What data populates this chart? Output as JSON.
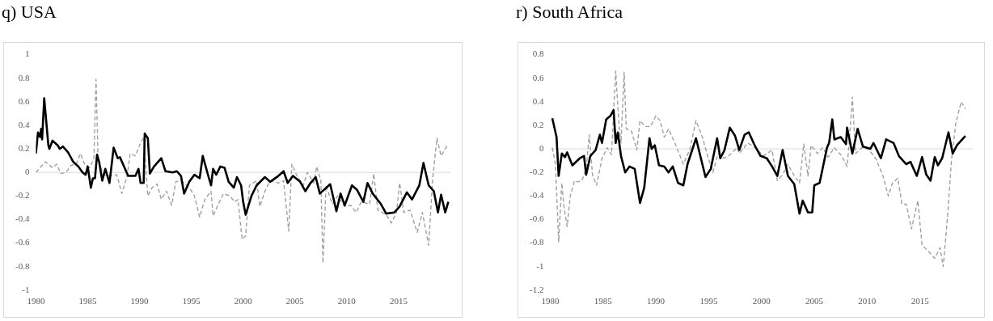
{
  "chart_data": [
    {
      "type": "line",
      "title": "q) USA",
      "xlim": [
        1980,
        2020
      ],
      "xticks": [
        1980,
        1985,
        1990,
        1995,
        2000,
        2005,
        2010,
        2015
      ],
      "ylim": [
        -1,
        1
      ],
      "yticks": [
        -1,
        -0.8,
        -0.6,
        -0.4,
        -0.2,
        0,
        0.2,
        0.4,
        0.6,
        0.8,
        1
      ],
      "grid": false,
      "legend": false,
      "marker": "none",
      "ref_lines": [
        {
          "axis": "y",
          "value": 0,
          "color": "#d9d9d9"
        }
      ],
      "series": [
        {
          "color": "#000000",
          "line_style": "solid",
          "x": [
            1980,
            1980.2,
            1980.4,
            1980.5,
            1980.6,
            1980.8,
            1981.2,
            1981.3,
            1981.6,
            1982.1,
            1982.3,
            1982.6,
            1983.1,
            1983.6,
            1984.1,
            1984.5,
            1984.8,
            1985.0,
            1985.3,
            1985.5,
            1985.7,
            1985.9,
            1986.1,
            1986.4,
            1986.7,
            1987.1,
            1987.5,
            1987.9,
            1988.1,
            1988.9,
            1989.6,
            1989.9,
            1990.1,
            1990.4,
            1990.5,
            1990.8,
            1991.0,
            1991.4,
            1992.1,
            1992.5,
            1993.2,
            1993.6,
            1994.0,
            1994.3,
            1994.8,
            1995.3,
            1995.8,
            1996.1,
            1996.7,
            1996.9,
            1997.1,
            1997.4,
            1997.8,
            1998.2,
            1998.6,
            1999.1,
            1999.4,
            1999.8,
            2000.0,
            2000.24,
            2000.8,
            2001.3,
            2002.1,
            2002.6,
            2003.4,
            2003.9,
            2004.3,
            2004.8,
            2005.5,
            2006.0,
            2006.5,
            2007.0,
            2007.4,
            2008.4,
            2009.0,
            2009.4,
            2009.8,
            2010.5,
            2011.0,
            2011.6,
            2012.0,
            2012.5,
            2013.3,
            2013.8,
            2014.6,
            2015.1,
            2015.8,
            2016.3,
            2017.0,
            2017.4,
            2017.9,
            2018.4,
            2018.8,
            2019.1,
            2019.5,
            2019.8
          ],
          "values": [
            0.16,
            0.34,
            0.3,
            0.37,
            0.28,
            0.63,
            0.23,
            0.2,
            0.27,
            0.23,
            0.2,
            0.22,
            0.17,
            0.09,
            0.05,
            0.0,
            -0.02,
            0.05,
            -0.13,
            -0.05,
            -0.05,
            0.15,
            0.09,
            -0.07,
            0.03,
            -0.09,
            0.21,
            0.12,
            0.13,
            -0.03,
            -0.03,
            0.03,
            -0.09,
            -0.09,
            0.33,
            0.29,
            -0.01,
            0.05,
            0.12,
            0.01,
            0.0,
            0.01,
            -0.03,
            -0.18,
            -0.08,
            -0.02,
            -0.05,
            0.14,
            -0.05,
            -0.11,
            0.03,
            -0.02,
            0.05,
            0.04,
            -0.08,
            -0.13,
            -0.04,
            -0.11,
            -0.25,
            -0.36,
            -0.2,
            -0.11,
            -0.04,
            -0.08,
            -0.03,
            0.01,
            -0.09,
            -0.03,
            -0.08,
            -0.16,
            -0.09,
            -0.04,
            -0.18,
            -0.1,
            -0.33,
            -0.18,
            -0.28,
            -0.11,
            -0.15,
            -0.25,
            -0.09,
            -0.18,
            -0.27,
            -0.35,
            -0.34,
            -0.29,
            -0.17,
            -0.23,
            -0.11,
            0.08,
            -0.11,
            -0.16,
            -0.34,
            -0.19,
            -0.34,
            -0.25
          ]
        },
        {
          "color": "#a0a0a0",
          "line_style": "dashed",
          "x": [
            1980,
            1980.5,
            1980.9,
            1981.6,
            1982.0,
            1982.4,
            1982.9,
            1983.4,
            1983.9,
            1984.3,
            1984.7,
            1985.2,
            1985.6,
            1985.8,
            1986.0,
            1986.5,
            1987.0,
            1987.8,
            1988.3,
            1988.8,
            1989.1,
            1989.6,
            1990.1,
            1990.4,
            1990.8,
            1991.2,
            1991.7,
            1992.1,
            1992.6,
            1993.1,
            1993.5,
            1994.0,
            1994.8,
            1995.3,
            1995.8,
            1996.3,
            1996.9,
            1997.1,
            1997.6,
            1998.1,
            1998.7,
            1999.2,
            1999.5,
            1999.9,
            2000.24,
            2000.6,
            2001.3,
            2001.6,
            2002.1,
            2002.6,
            2003.4,
            2003.9,
            2004.4,
            2004.7,
            2005.2,
            2005.8,
            2006.2,
            2006.8,
            2007.1,
            2007.5,
            2007.7,
            2008.0,
            2008.6,
            2009.1,
            2009.8,
            2010.4,
            2010.9,
            2011.4,
            2012.2,
            2012.6,
            2013.0,
            2013.8,
            2014.3,
            2014.8,
            2015.1,
            2015.5,
            2016.1,
            2016.8,
            2017.3,
            2017.9,
            2018.3,
            2018.7,
            2019.1,
            2019.7
          ],
          "values": [
            0.0,
            0.05,
            0.09,
            0.04,
            0.07,
            -0.01,
            0.0,
            0.06,
            0.07,
            0.16,
            0.07,
            0.04,
            0.12,
            0.79,
            0.12,
            -0.02,
            -0.03,
            -0.02,
            -0.18,
            -0.03,
            0.16,
            0.14,
            0.25,
            0.3,
            -0.2,
            -0.13,
            -0.1,
            -0.23,
            -0.16,
            -0.28,
            -0.08,
            -0.07,
            -0.13,
            -0.2,
            -0.38,
            -0.23,
            -0.16,
            -0.37,
            -0.27,
            -0.18,
            -0.2,
            -0.25,
            -0.23,
            -0.57,
            -0.54,
            -0.11,
            -0.07,
            -0.29,
            -0.16,
            -0.07,
            -0.09,
            -0.07,
            -0.5,
            0.07,
            -0.03,
            -0.11,
            0.0,
            -0.09,
            0.05,
            -0.07,
            -0.77,
            -0.11,
            -0.27,
            -0.2,
            -0.29,
            -0.28,
            -0.34,
            -0.25,
            -0.27,
            -0.01,
            -0.32,
            -0.36,
            -0.43,
            -0.34,
            -0.09,
            -0.34,
            -0.32,
            -0.51,
            -0.34,
            -0.62,
            -0.04,
            0.29,
            0.14,
            0.23
          ]
        }
      ]
    },
    {
      "type": "line",
      "title": "r) South Africa",
      "xlim": [
        1980,
        2020
      ],
      "xticks": [
        1980,
        1985,
        1990,
        1995,
        2000,
        2005,
        2010,
        2015
      ],
      "ylim": [
        -1.2,
        0.8
      ],
      "yticks": [
        -1.2,
        -1,
        -0.8,
        -0.6,
        -0.4,
        -0.2,
        0,
        0.2,
        0.4,
        0.6,
        0.8
      ],
      "grid": false,
      "legend": false,
      "marker": "none",
      "ref_lines": [
        {
          "axis": "y",
          "value": 0,
          "color": "#d9d9d9"
        }
      ],
      "series": [
        {
          "color": "#000000",
          "line_style": "solid",
          "x": [
            1980.2,
            1980.6,
            1980.8,
            1981.1,
            1981.4,
            1981.6,
            1982.1,
            1982.8,
            1983.2,
            1983.4,
            1983.8,
            1984.3,
            1984.7,
            1984.9,
            1985.3,
            1985.7,
            1986.0,
            1986.2,
            1986.4,
            1986.7,
            1987.1,
            1987.5,
            1988.0,
            1988.5,
            1988.9,
            1989.4,
            1989.6,
            1989.9,
            1990.3,
            1990.8,
            1991.2,
            1991.6,
            1992.1,
            1992.6,
            1993.0,
            1993.8,
            1994.4,
            1994.7,
            1995.2,
            1995.8,
            1996.1,
            1996.5,
            1997.0,
            1997.5,
            1997.9,
            1998.4,
            1998.8,
            1999.3,
            1999.9,
            2000.5,
            2001.0,
            2001.5,
            2002.0,
            2002.5,
            2003.1,
            2003.6,
            2003.9,
            2004.4,
            2004.8,
            2005.0,
            2005.5,
            2006.2,
            2006.4,
            2006.7,
            2006.9,
            2007.5,
            2008.0,
            2008.1,
            2008.6,
            2009.1,
            2009.6,
            2010.3,
            2010.6,
            2011.3,
            2011.8,
            2012.5,
            2013.0,
            2013.7,
            2014.1,
            2014.7,
            2015.2,
            2015.6,
            2016.0,
            2016.4,
            2016.7,
            2017.1,
            2017.7,
            2018.1,
            2018.5,
            2018.9,
            2019.3
          ],
          "values": [
            0.26,
            0.1,
            -0.23,
            -0.04,
            -0.07,
            -0.03,
            -0.14,
            -0.08,
            -0.06,
            -0.22,
            -0.06,
            -0.01,
            0.12,
            0.05,
            0.25,
            0.28,
            0.33,
            0.05,
            0.14,
            -0.06,
            -0.2,
            -0.15,
            -0.17,
            -0.46,
            -0.33,
            0.09,
            0.0,
            0.03,
            -0.14,
            -0.15,
            -0.2,
            -0.15,
            -0.29,
            -0.31,
            -0.13,
            0.09,
            -0.13,
            -0.24,
            -0.17,
            0.09,
            -0.08,
            -0.01,
            0.18,
            0.11,
            -0.01,
            0.12,
            0.14,
            0.04,
            -0.06,
            -0.08,
            -0.15,
            -0.23,
            -0.01,
            -0.23,
            -0.3,
            -0.55,
            -0.44,
            -0.54,
            -0.54,
            -0.31,
            -0.29,
            0.01,
            0.05,
            0.25,
            0.08,
            0.1,
            0.04,
            0.18,
            -0.04,
            0.17,
            0.02,
            0.0,
            0.05,
            -0.08,
            0.08,
            0.05,
            -0.06,
            -0.13,
            -0.11,
            -0.23,
            -0.07,
            -0.22,
            -0.27,
            -0.07,
            -0.14,
            -0.08,
            0.14,
            -0.04,
            0.03,
            0.07,
            0.11
          ]
        },
        {
          "color": "#a0a0a0",
          "line_style": "dashed",
          "x": [
            1980.2,
            1980.5,
            1980.8,
            1981.1,
            1981.3,
            1981.6,
            1981.9,
            1982.3,
            1982.6,
            1983.0,
            1983.4,
            1983.7,
            1984.0,
            1984.4,
            1984.9,
            1985.4,
            1985.8,
            1986.2,
            1986.5,
            1986.7,
            1987.0,
            1987.2,
            1987.7,
            1988.2,
            1988.5,
            1989.0,
            1989.5,
            1990.0,
            1990.4,
            1990.8,
            1991.2,
            1991.8,
            1992.6,
            1993.2,
            1993.8,
            1994.4,
            1994.9,
            1995.4,
            1995.9,
            1996.4,
            1996.9,
            1997.7,
            1997.9,
            1998.7,
            1999.4,
            2000.2,
            2001.0,
            2001.5,
            2002.0,
            2002.5,
            2003.1,
            2003.6,
            2004.0,
            2004.4,
            2004.7,
            2005.3,
            2005.8,
            2006.3,
            2006.9,
            2007.6,
            2008.1,
            2008.3,
            2008.6,
            2008.9,
            2009.5,
            2010.1,
            2010.8,
            2011.5,
            2012.0,
            2012.4,
            2012.9,
            2013.3,
            2013.7,
            2014.2,
            2014.8,
            2015.2,
            2015.7,
            2016.4,
            2016.9,
            2017.2,
            2017.6,
            2018.0,
            2018.4,
            2018.9,
            2019.3
          ],
          "values": [
            0.01,
            -0.13,
            -0.79,
            -0.29,
            -0.49,
            -0.66,
            -0.4,
            -0.27,
            -0.28,
            -0.27,
            -0.17,
            0.12,
            -0.22,
            -0.31,
            -0.08,
            0.01,
            -0.05,
            0.66,
            0.22,
            0.05,
            0.65,
            0.17,
            0.15,
            -0.01,
            0.24,
            0.19,
            0.19,
            0.28,
            0.24,
            0.1,
            0.17,
            0.05,
            -0.13,
            -0.01,
            0.24,
            0.1,
            -0.06,
            -0.2,
            -0.04,
            -0.08,
            -0.06,
            0.01,
            -0.04,
            0.05,
            0.01,
            -0.06,
            -0.01,
            -0.27,
            -0.22,
            -0.13,
            -0.23,
            -0.29,
            0.04,
            -0.23,
            0.03,
            -0.04,
            0.01,
            -0.07,
            0.01,
            -0.06,
            -0.15,
            0.05,
            0.44,
            -0.04,
            0.01,
            0.0,
            -0.08,
            -0.23,
            -0.4,
            -0.29,
            -0.25,
            -0.47,
            -0.47,
            -0.68,
            -0.44,
            -0.82,
            -0.86,
            -0.93,
            -0.84,
            -1.0,
            -0.59,
            -0.08,
            0.22,
            0.4,
            0.34
          ]
        }
      ]
    }
  ]
}
